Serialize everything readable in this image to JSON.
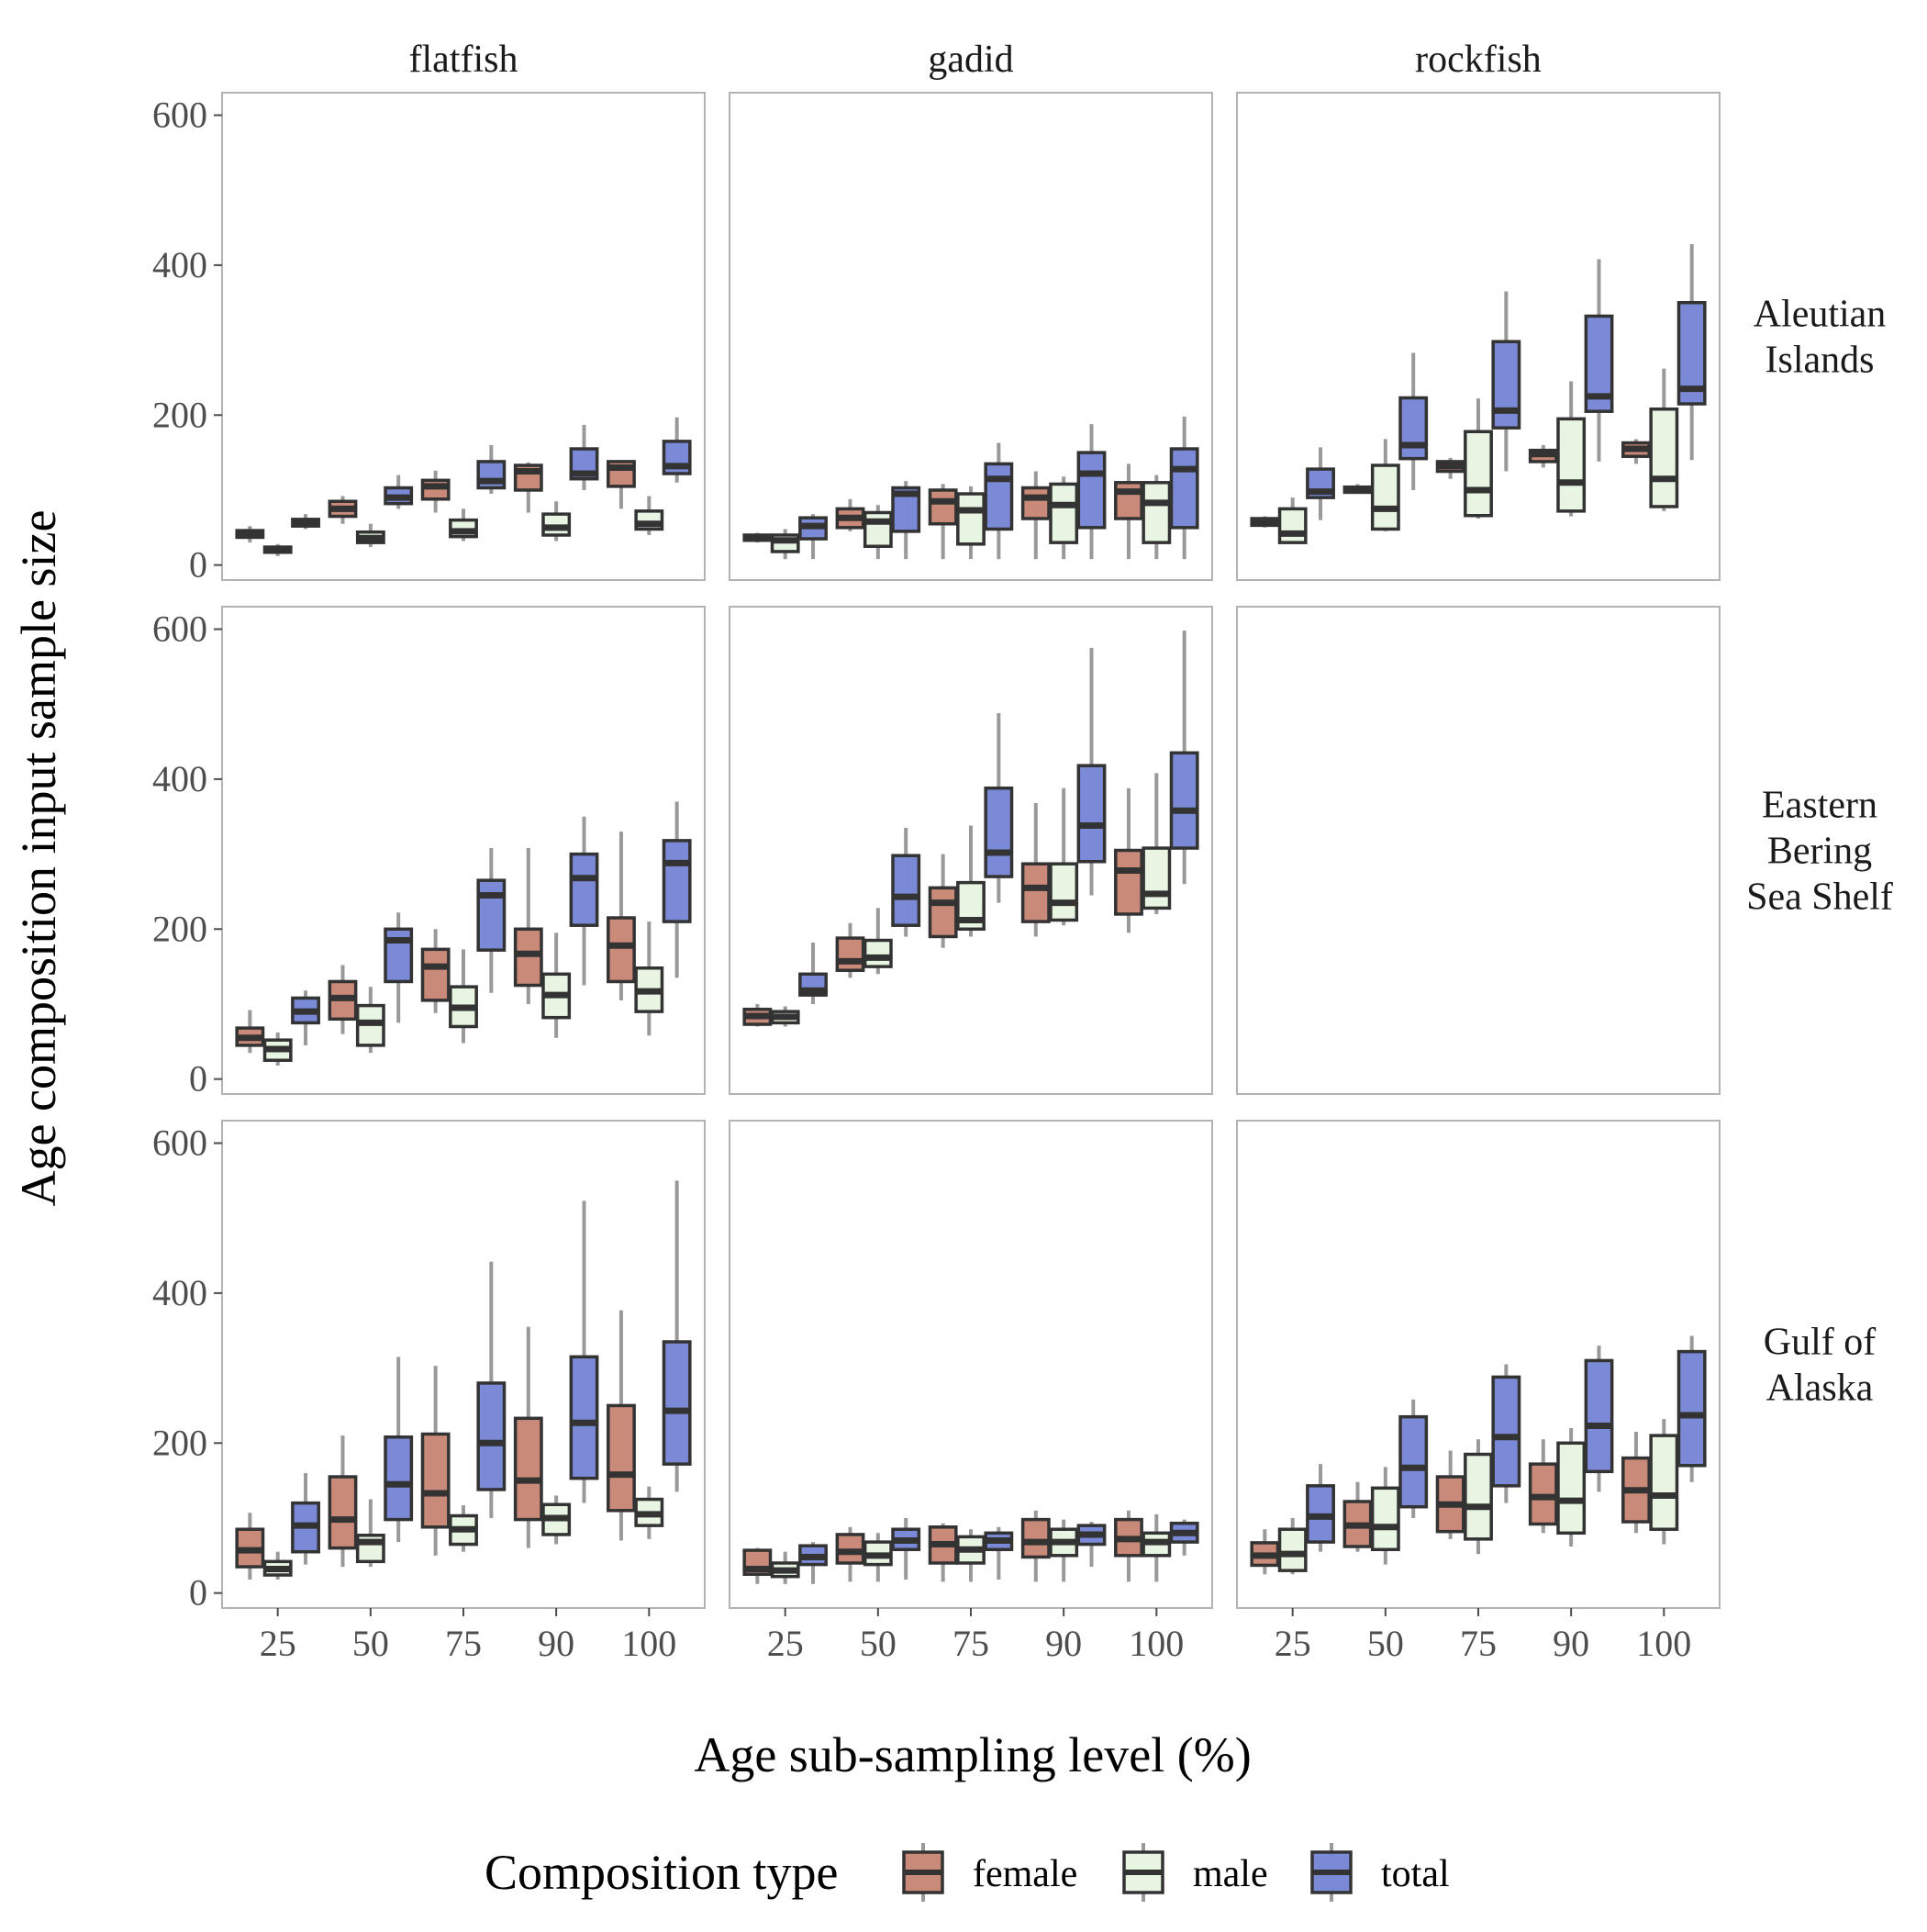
{
  "chart_data": {
    "type": "boxplot",
    "xlabel": "Age sub-sampling level (%)",
    "ylabel": "Age composition input sample size",
    "ylim": [
      -20,
      630
    ],
    "yticks": [
      0,
      200,
      400,
      600
    ],
    "categories": [
      "25",
      "50",
      "75",
      "90",
      "100"
    ],
    "columns": [
      "flatfish",
      "gadid",
      "rockfish"
    ],
    "rows": [
      [
        "Aleutian",
        "Islands"
      ],
      [
        "Eastern",
        "Bering",
        "Sea Shelf"
      ],
      [
        "Gulf of",
        "Alaska"
      ]
    ],
    "legend": {
      "title": "Composition type",
      "items": [
        {
          "name": "female",
          "color": "#c98a79"
        },
        {
          "name": "male",
          "color": "#e8f5e2"
        },
        {
          "name": "total",
          "color": "#7b8ad6"
        }
      ],
      "position": "bottom"
    },
    "grid": false,
    "panels": [
      {
        "row": 0,
        "col": 0,
        "boxes": [
          [
            [
              30,
              37,
              41,
              46,
              52
            ],
            [
              12,
              17,
              20,
              24,
              28
            ],
            [
              48,
              52,
              56,
              61,
              68
            ]
          ],
          [
            [
              55,
              65,
              75,
              85,
              92
            ],
            [
              24,
              30,
              36,
              44,
              55
            ],
            [
              75,
              82,
              90,
              103,
              120
            ]
          ],
          [
            [
              70,
              88,
              105,
              113,
              126
            ],
            [
              32,
              38,
              45,
              60,
              75
            ],
            [
              95,
              103,
              112,
              138,
              160
            ]
          ],
          [
            [
              70,
              100,
              125,
              133,
              137
            ],
            [
              32,
              40,
              50,
              68,
              85
            ],
            [
              100,
              115,
              122,
              155,
              187
            ]
          ],
          [
            [
              75,
              105,
              130,
              138,
              140
            ],
            [
              40,
              48,
              55,
              72,
              92
            ],
            [
              110,
              122,
              132,
              165,
              197
            ]
          ]
        ]
      },
      {
        "row": 0,
        "col": 1,
        "boxes": [
          [
            [
              30,
              33,
              37,
              40,
              43
            ],
            [
              8,
              18,
              33,
              40,
              48
            ],
            [
              8,
              35,
              52,
              63,
              68
            ]
          ],
          [
            [
              45,
              50,
              63,
              75,
              88
            ],
            [
              8,
              25,
              58,
              70,
              80
            ],
            [
              8,
              45,
              95,
              103,
              112
            ]
          ],
          [
            [
              8,
              55,
              85,
              100,
              108
            ],
            [
              8,
              28,
              73,
              95,
              105
            ],
            [
              8,
              48,
              115,
              135,
              163
            ]
          ],
          [
            [
              8,
              62,
              90,
              103,
              125
            ],
            [
              8,
              30,
              80,
              108,
              118
            ],
            [
              8,
              50,
              122,
              150,
              188
            ]
          ],
          [
            [
              8,
              62,
              98,
              110,
              135
            ],
            [
              8,
              30,
              83,
              110,
              120
            ],
            [
              8,
              50,
              128,
              155,
              198
            ]
          ]
        ]
      },
      {
        "row": 0,
        "col": 2,
        "boxes": [
          [
            [
              50,
              53,
              58,
              62,
              65
            ],
            [
              28,
              30,
              42,
              75,
              90
            ],
            [
              60,
              90,
              98,
              128,
              157
            ]
          ],
          [
            [
              95,
              97,
              100,
              104,
              108
            ],
            [
              45,
              48,
              75,
              133,
              168
            ],
            [
              100,
              142,
              160,
              223,
              283
            ]
          ],
          [
            [
              115,
              125,
              132,
              138,
              143
            ],
            [
              62,
              66,
              100,
              178,
              222
            ],
            [
              125,
              183,
              206,
              298,
              365
            ]
          ],
          [
            [
              130,
              138,
              148,
              153,
              160
            ],
            [
              65,
              72,
              110,
              195,
              245
            ],
            [
              138,
              205,
              225,
              332,
              408
            ]
          ],
          [
            [
              135,
              145,
              155,
              163,
              168
            ],
            [
              72,
              78,
              115,
              208,
              262
            ],
            [
              140,
              215,
              235,
              350,
              428
            ]
          ]
        ]
      },
      {
        "row": 1,
        "col": 0,
        "boxes": [
          [
            [
              35,
              45,
              55,
              68,
              92
            ],
            [
              18,
              25,
              40,
              52,
              62
            ],
            [
              45,
              75,
              90,
              108,
              118
            ]
          ],
          [
            [
              60,
              80,
              108,
              130,
              152
            ],
            [
              35,
              45,
              75,
              98,
              123
            ],
            [
              75,
              130,
              185,
              200,
              222
            ]
          ],
          [
            [
              88,
              105,
              150,
              173,
              200
            ],
            [
              48,
              70,
              95,
              123,
              173
            ],
            [
              115,
              172,
              245,
              265,
              308
            ]
          ],
          [
            [
              100,
              125,
              167,
              200,
              308
            ],
            [
              55,
              82,
              112,
              140,
              195
            ],
            [
              125,
              205,
              268,
              300,
              350
            ]
          ],
          [
            [
              105,
              130,
              178,
              215,
              330
            ],
            [
              58,
              90,
              117,
              148,
              210
            ],
            [
              135,
              210,
              288,
              318,
              370
            ]
          ]
        ]
      },
      {
        "row": 1,
        "col": 1,
        "boxes": [
          [
            [
              70,
              73,
              84,
              93,
              100
            ],
            [
              70,
              75,
              83,
              90,
              97
            ],
            [
              100,
              112,
              118,
              140,
              182
            ]
          ],
          [
            [
              135,
              145,
              157,
              188,
              208
            ],
            [
              140,
              150,
              162,
              185,
              228
            ],
            [
              190,
              205,
              243,
              298,
              335
            ]
          ],
          [
            [
              175,
              190,
              235,
              255,
              300
            ],
            [
              190,
              200,
              212,
              262,
              338
            ],
            [
              235,
              270,
              302,
              388,
              488
            ]
          ],
          [
            [
              190,
              210,
              255,
              287,
              368
            ],
            [
              205,
              212,
              235,
              287,
              388
            ],
            [
              245,
              290,
              338,
              418,
              575
            ]
          ],
          [
            [
              195,
              220,
              278,
              305,
              388
            ],
            [
              220,
              228,
              247,
              308,
              408
            ],
            [
              260,
              308,
              358,
              435,
              598
            ]
          ]
        ]
      },
      {
        "row": 1,
        "col": 2,
        "boxes": []
      },
      {
        "row": 2,
        "col": 0,
        "boxes": [
          [
            [
              18,
              35,
              57,
              85,
              107
            ],
            [
              18,
              24,
              32,
              42,
              55
            ],
            [
              38,
              55,
              90,
              120,
              160
            ]
          ],
          [
            [
              35,
              60,
              98,
              155,
              210
            ],
            [
              35,
              42,
              68,
              77,
              125
            ],
            [
              68,
              98,
              145,
              208,
              315
            ]
          ],
          [
            [
              50,
              88,
              133,
              212,
              303
            ],
            [
              55,
              65,
              85,
              103,
              117
            ],
            [
              100,
              138,
              200,
              280,
              442
            ]
          ],
          [
            [
              60,
              98,
              150,
              233,
              355
            ],
            [
              65,
              78,
              100,
              118,
              130
            ],
            [
              120,
              153,
              227,
              315,
              523
            ]
          ],
          [
            [
              70,
              110,
              158,
              250,
              377
            ],
            [
              72,
              90,
              105,
              125,
              142
            ],
            [
              135,
              172,
              243,
              335,
              550
            ]
          ]
        ]
      },
      {
        "row": 2,
        "col": 1,
        "boxes": [
          [
            [
              12,
              25,
              32,
              57,
              60
            ],
            [
              12,
              22,
              30,
              40,
              55
            ],
            [
              12,
              38,
              48,
              63,
              68
            ]
          ],
          [
            [
              15,
              40,
              55,
              78,
              88
            ],
            [
              15,
              38,
              50,
              68,
              80
            ],
            [
              18,
              58,
              70,
              85,
              100
            ]
          ],
          [
            [
              15,
              40,
              65,
              88,
              93
            ],
            [
              15,
              40,
              58,
              75,
              85
            ],
            [
              18,
              58,
              70,
              80,
              88
            ]
          ],
          [
            [
              15,
              48,
              68,
              98,
              110
            ],
            [
              15,
              50,
              68,
              85,
              98
            ],
            [
              35,
              65,
              78,
              90,
              95
            ]
          ],
          [
            [
              15,
              50,
              72,
              98,
              110
            ],
            [
              15,
              50,
              68,
              80,
              105
            ],
            [
              50,
              68,
              80,
              93,
              98
            ]
          ]
        ]
      },
      {
        "row": 2,
        "col": 2,
        "boxes": [
          [
            [
              25,
              37,
              50,
              67,
              85
            ],
            [
              25,
              30,
              52,
              85,
              100
            ],
            [
              55,
              68,
              102,
              143,
              172
            ]
          ],
          [
            [
              55,
              62,
              90,
              122,
              148
            ],
            [
              38,
              58,
              88,
              140,
              168
            ],
            [
              100,
              115,
              167,
              235,
              258
            ]
          ],
          [
            [
              72,
              82,
              118,
              155,
              190
            ],
            [
              52,
              72,
              115,
              185,
              205
            ],
            [
              120,
              143,
              208,
              288,
              305
            ]
          ],
          [
            [
              80,
              92,
              128,
              172,
              205
            ],
            [
              62,
              80,
              123,
              200,
              220
            ],
            [
              135,
              162,
              223,
              310,
              330
            ]
          ],
          [
            [
              80,
              95,
              137,
              180,
              215
            ],
            [
              65,
              85,
              130,
              210,
              232
            ],
            [
              148,
              170,
              237,
              322,
              343
            ]
          ]
        ]
      }
    ]
  }
}
